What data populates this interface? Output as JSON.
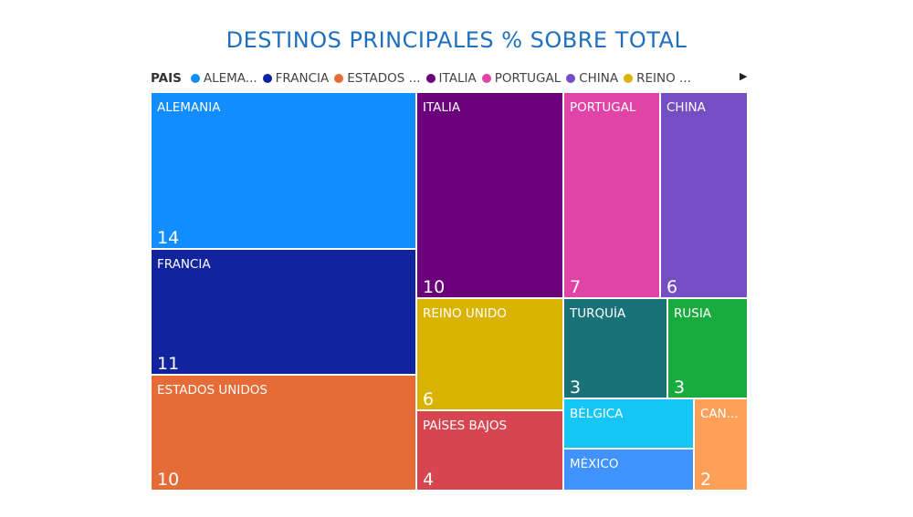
{
  "chart_data": {
    "type": "treemap",
    "title": "DESTINOS PRINCIPALES % SOBRE TOTAL",
    "legend": {
      "title": "PAIS",
      "placement": "top-left",
      "entries": [
        {
          "label": "ALEMA...",
          "color": "#118dff"
        },
        {
          "label": "FRANCIA",
          "color": "#12239e"
        },
        {
          "label": "ESTADOS ...",
          "color": "#e66c37"
        },
        {
          "label": "ITALIA",
          "color": "#6b007b"
        },
        {
          "label": "PORTUGAL",
          "color": "#e044a7"
        },
        {
          "label": "CHINA",
          "color": "#744ec2"
        },
        {
          "label": "REINO ...",
          "color": "#d9b300"
        }
      ],
      "next_arrow": "▶"
    },
    "tiles": [
      {
        "label": "ALEMANIA",
        "value": 14,
        "color": "#118dff"
      },
      {
        "label": "FRANCIA",
        "value": 11,
        "color": "#12239e"
      },
      {
        "label": "ESTADOS UNIDOS",
        "value": 10,
        "color": "#e66c37"
      },
      {
        "label": "ITALIA",
        "value": 10,
        "color": "#6b007b"
      },
      {
        "label": "PORTUGAL",
        "value": 7,
        "color": "#e044a7"
      },
      {
        "label": "CHINA",
        "value": 6,
        "color": "#744ec2"
      },
      {
        "label": "REINO UNIDO",
        "value": 6,
        "color": "#d9b300"
      },
      {
        "label": "PAÍSES BAJOS",
        "value": 4,
        "color": "#d64550"
      },
      {
        "label": "TURQUÍA",
        "value": 3,
        "color": "#197278"
      },
      {
        "label": "RUSIA",
        "value": 3,
        "color": "#1aab40"
      },
      {
        "label": "BÉLGICA",
        "value": null,
        "color": "#15c6f4"
      },
      {
        "label": "MÉXICO",
        "value": null,
        "color": "#4092ff"
      },
      {
        "label": "CAN...",
        "value": 2,
        "color": "#ffa058"
      }
    ]
  }
}
